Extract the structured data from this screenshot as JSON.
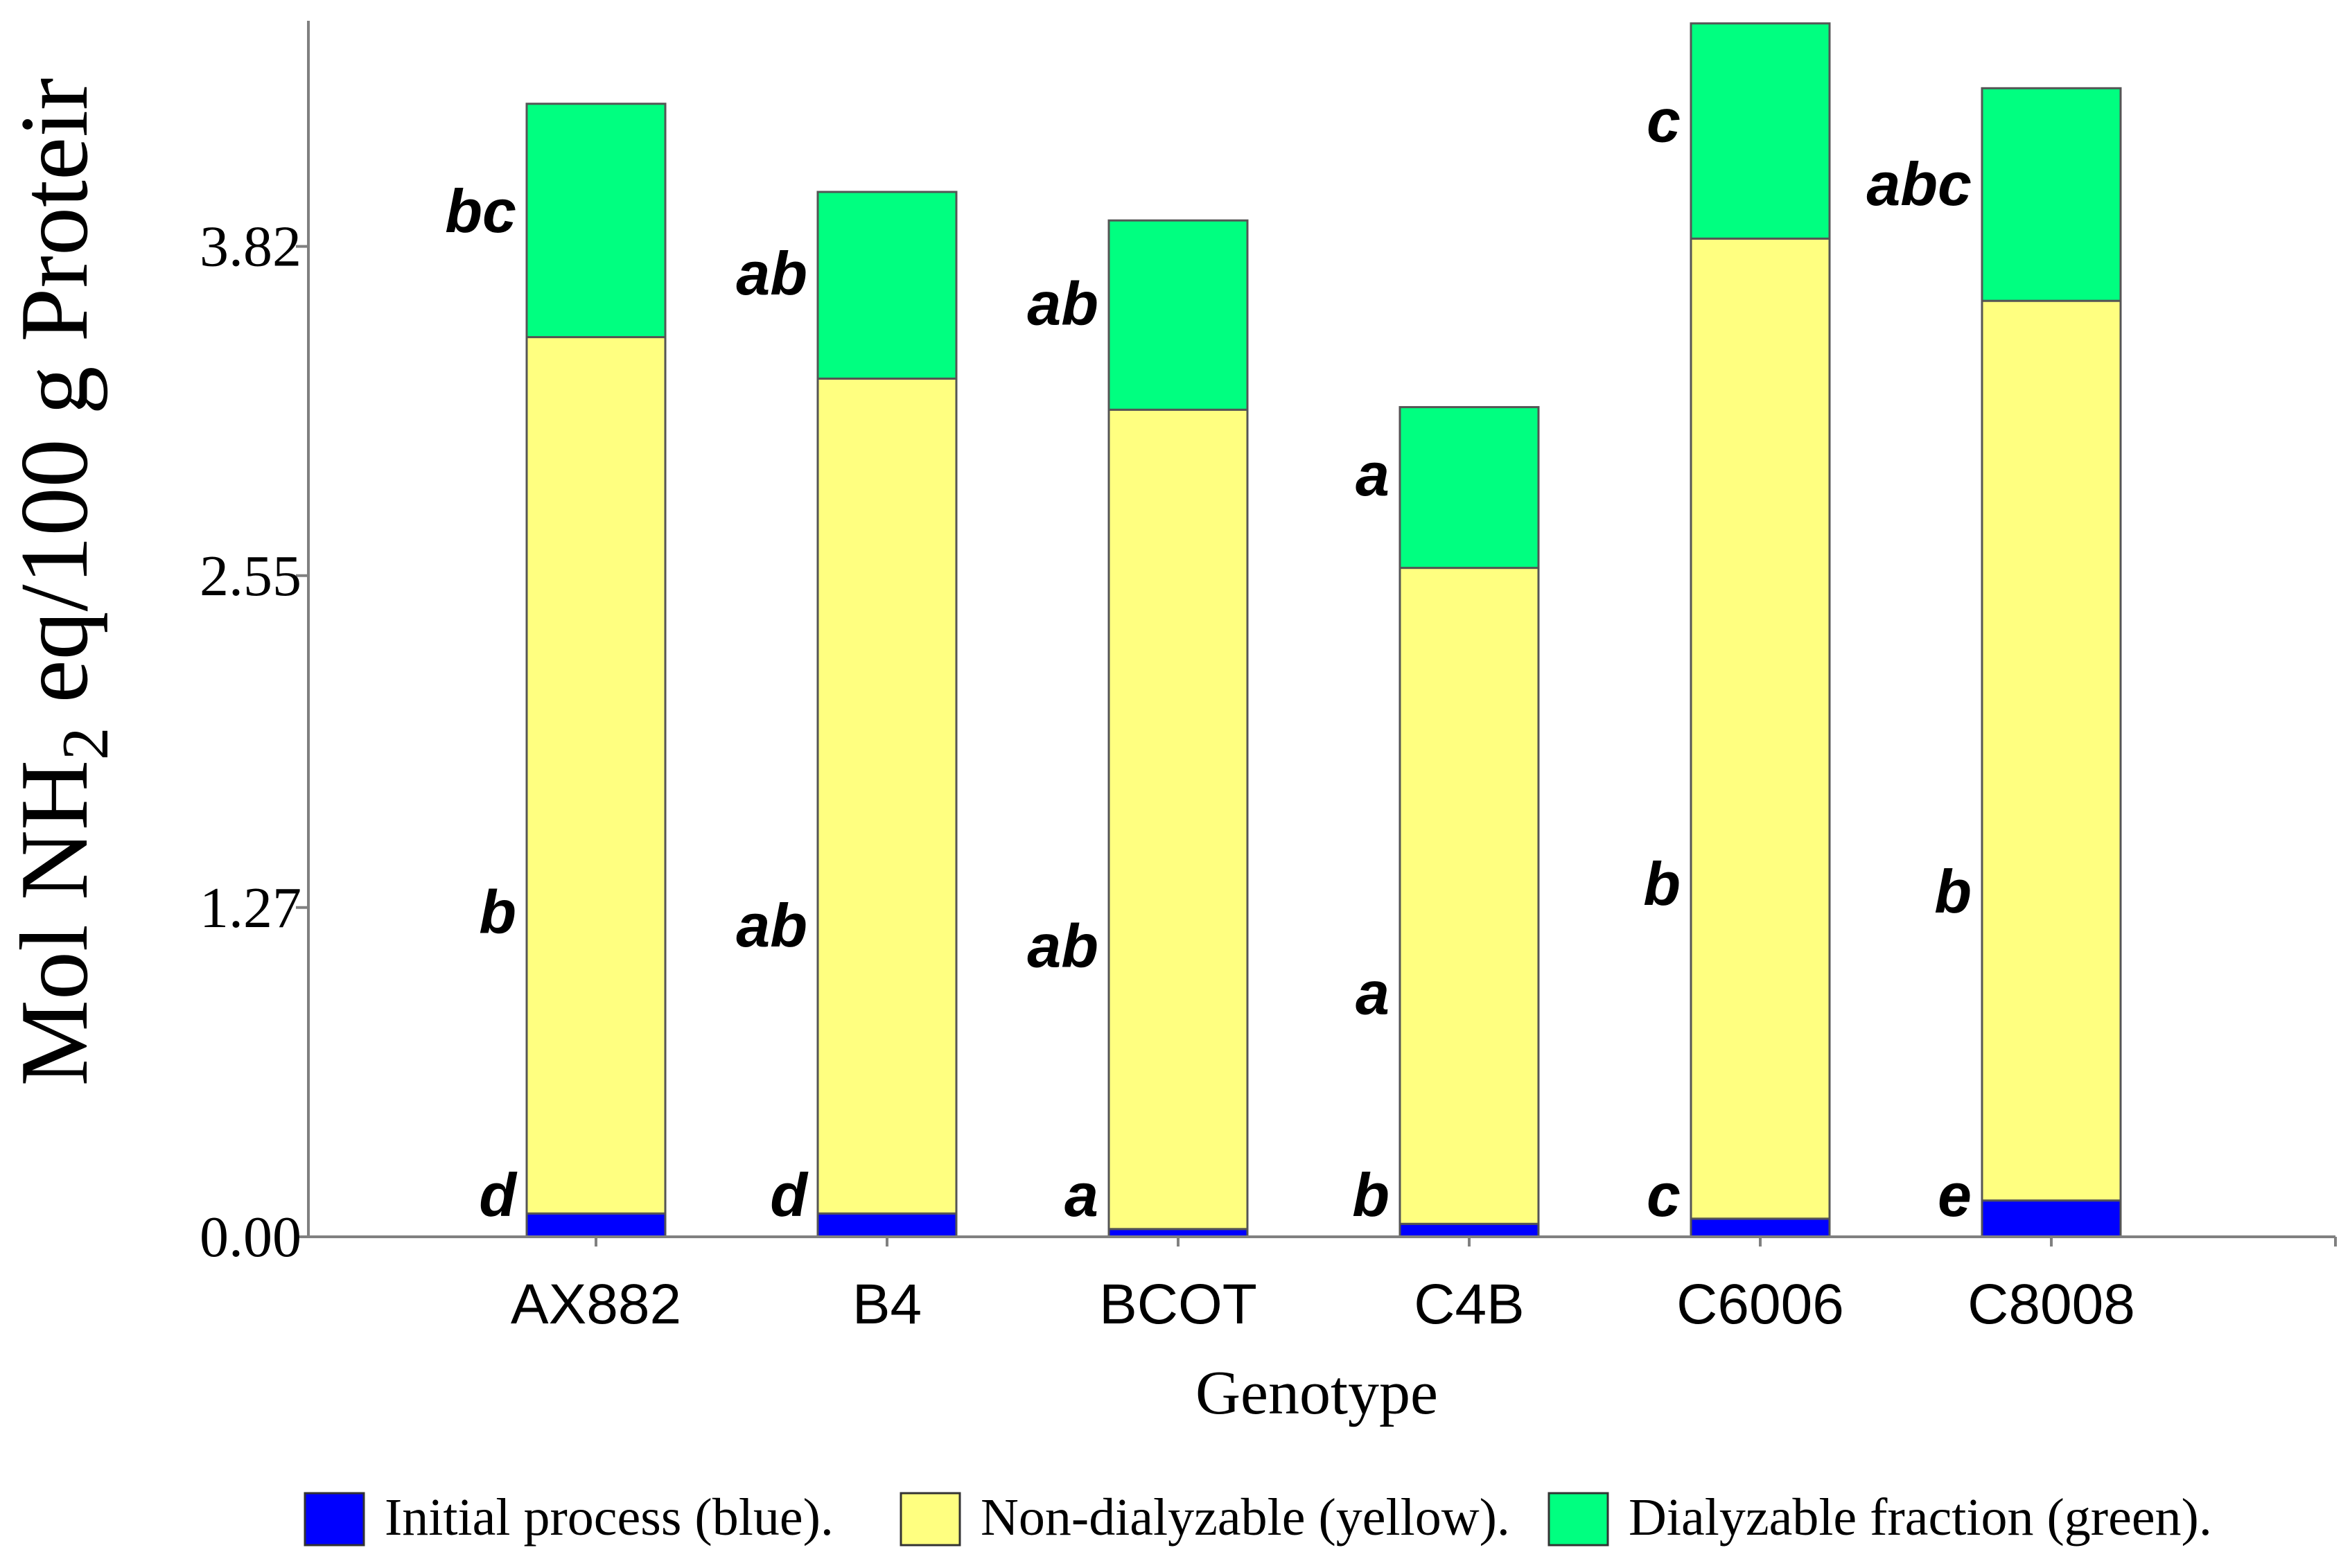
{
  "chart_data": {
    "type": "bar",
    "stacked": true,
    "title": "",
    "xlabel": "Genotype",
    "ylabel_parts": {
      "pre": "Mol NH",
      "sub": "2",
      "post": " eq/100 g Proteir"
    },
    "ylim": [
      0,
      4.65
    ],
    "yticks": [
      0.0,
      1.27,
      2.55,
      3.82
    ],
    "ytick_labels": [
      "0.00",
      "1.27",
      "2.55",
      "3.82"
    ],
    "categories": [
      "AX882",
      "B4",
      "BCOT",
      "C4B",
      "C6006",
      "C8008"
    ],
    "series": [
      {
        "name": "Initial process (blue).",
        "color": "#0000ff",
        "values": [
          0.09,
          0.09,
          0.03,
          0.05,
          0.07,
          0.14
        ],
        "letters": [
          "d",
          "d",
          "a",
          "b",
          "c",
          "e"
        ]
      },
      {
        "name": "Non-dialyzable (yellow).",
        "color": "#ffff80",
        "values": [
          3.38,
          3.22,
          3.16,
          2.53,
          3.78,
          3.47
        ],
        "letters": [
          "b",
          "ab",
          "ab",
          "a",
          "b",
          "b"
        ]
      },
      {
        "name": "Dialyzable fraction (green).",
        "color": "#00ff80",
        "values": [
          0.9,
          0.72,
          0.73,
          0.62,
          0.83,
          0.82
        ],
        "letters": [
          "bc",
          "ab",
          "ab",
          "a",
          "c",
          "abc"
        ]
      }
    ]
  }
}
